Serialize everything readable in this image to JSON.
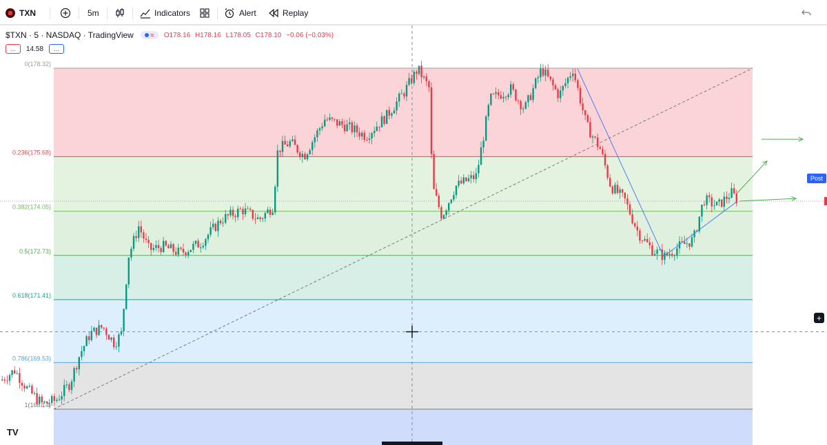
{
  "toolbar": {
    "symbol": "TXN",
    "interval": "5m",
    "indicators_label": "Indicators",
    "alert_label": "Alert",
    "replay_label": "Replay",
    "icons": [
      "add-symbol-icon",
      "bar-style-icon",
      "indicators-icon",
      "layouts-icon",
      "alert-icon",
      "replay-icon",
      "undo-icon"
    ]
  },
  "legend": {
    "title": "$TXN · 5 · NASDAQ · TradingView",
    "open": "O178.16",
    "high": "H178.16",
    "low": "L178.05",
    "close": "C178.10",
    "change": "−0.06 (−0.03%)",
    "indicator_value": "14.58",
    "btn_label": "..."
  },
  "post_label": "Post",
  "watermark": "TV",
  "colors": {
    "up": "#089981",
    "down": "#f23645",
    "trendline": "#4a7ff0",
    "arrow": "#4caf50"
  },
  "chart_data": {
    "type": "candlestick",
    "symbol": "$TXN",
    "interval": "5",
    "exchange": "NASDAQ",
    "ylim": [
      168.4,
      178.9
    ],
    "fib_levels": [
      {
        "ratio": "0",
        "price": 178.32,
        "label": "0(178.32)"
      },
      {
        "ratio": "0.236",
        "price": 175.68,
        "label": "0.236(175.68)"
      },
      {
        "ratio": "0.382",
        "price": 174.05,
        "label": "0.382(174.05)"
      },
      {
        "ratio": "0.5",
        "price": 172.73,
        "label": "0.5(172.73)"
      },
      {
        "ratio": "0.618",
        "price": 171.41,
        "label": "0.618(171.41)"
      },
      {
        "ratio": "0.786",
        "price": 169.53,
        "label": "0.786(169.53)"
      },
      {
        "ratio": "1",
        "price": 168.14,
        "label": "1(168.14)"
      }
    ],
    "fib_zones": [
      {
        "from": 178.32,
        "to": 175.68,
        "color": "#fbd4d8"
      },
      {
        "from": 175.68,
        "to": 174.05,
        "color": "#e4f3e0"
      },
      {
        "from": 174.05,
        "to": 172.73,
        "color": "#dff0df"
      },
      {
        "from": 172.73,
        "to": 171.41,
        "color": "#d7efe7"
      },
      {
        "from": 171.41,
        "to": 169.53,
        "color": "#ddeefc"
      },
      {
        "from": 169.53,
        "to": 168.14,
        "color": "#e4e4e4"
      },
      {
        "from": 168.14,
        "to": 166.0,
        "color": "#cfdcfb"
      }
    ],
    "fib_line_colors": [
      "#9c9c9c",
      "#e0484a",
      "#6fbf5b",
      "#4caf50",
      "#18a58a",
      "#52a6d6",
      "#7a7a7a"
    ],
    "price_path": [
      {
        "x": 0,
        "p": 169.0
      },
      {
        "x": 20,
        "p": 169.3
      },
      {
        "x": 40,
        "p": 168.7
      },
      {
        "x": 60,
        "p": 168.3
      },
      {
        "x": 80,
        "p": 168.4
      },
      {
        "x": 100,
        "p": 168.9
      },
      {
        "x": 115,
        "p": 169.8
      },
      {
        "x": 130,
        "p": 170.4
      },
      {
        "x": 148,
        "p": 170.6
      },
      {
        "x": 165,
        "p": 170.1
      },
      {
        "x": 175,
        "p": 170.4
      },
      {
        "x": 185,
        "p": 172.7
      },
      {
        "x": 200,
        "p": 173.6
      },
      {
        "x": 215,
        "p": 172.9
      },
      {
        "x": 235,
        "p": 173.0
      },
      {
        "x": 260,
        "p": 172.8
      },
      {
        "x": 290,
        "p": 173.1
      },
      {
        "x": 320,
        "p": 173.8
      },
      {
        "x": 350,
        "p": 174.1
      },
      {
        "x": 375,
        "p": 173.8
      },
      {
        "x": 395,
        "p": 174.2
      },
      {
        "x": 402,
        "p": 175.9
      },
      {
        "x": 420,
        "p": 176.1
      },
      {
        "x": 440,
        "p": 175.7
      },
      {
        "x": 470,
        "p": 176.8
      },
      {
        "x": 500,
        "p": 176.6
      },
      {
        "x": 530,
        "p": 176.3
      },
      {
        "x": 560,
        "p": 176.9
      },
      {
        "x": 585,
        "p": 177.6
      },
      {
        "x": 605,
        "p": 178.3
      },
      {
        "x": 622,
        "p": 177.7
      },
      {
        "x": 626,
        "p": 174.8
      },
      {
        "x": 640,
        "p": 173.9
      },
      {
        "x": 660,
        "p": 174.8
      },
      {
        "x": 690,
        "p": 175.1
      },
      {
        "x": 710,
        "p": 177.4
      },
      {
        "x": 740,
        "p": 177.7
      },
      {
        "x": 760,
        "p": 177.1
      },
      {
        "x": 785,
        "p": 178.3
      },
      {
        "x": 810,
        "p": 177.5
      },
      {
        "x": 830,
        "p": 178.3
      },
      {
        "x": 850,
        "p": 176.6
      },
      {
        "x": 870,
        "p": 175.9
      },
      {
        "x": 885,
        "p": 174.8
      },
      {
        "x": 905,
        "p": 174.4
      },
      {
        "x": 925,
        "p": 173.4
      },
      {
        "x": 945,
        "p": 172.9
      },
      {
        "x": 963,
        "p": 172.7
      },
      {
        "x": 985,
        "p": 173.0
      },
      {
        "x": 1005,
        "p": 173.2
      },
      {
        "x": 1020,
        "p": 174.4
      },
      {
        "x": 1040,
        "p": 174.2
      },
      {
        "x": 1060,
        "p": 174.6
      },
      {
        "x": 1070,
        "p": 174.35
      }
    ],
    "last_price": 174.35,
    "trendlines": [
      {
        "x1": 78,
        "p1": 168.14,
        "x2": 1092,
        "p2": 178.32,
        "style": "dashed"
      },
      {
        "x1": 838,
        "p1": 178.3,
        "x2": 963,
        "p2": 172.7,
        "style": "solid"
      },
      {
        "x1": 963,
        "p1": 172.7,
        "x2": 1070,
        "p2": 174.35,
        "style": "solid"
      }
    ],
    "arrows": [
      {
        "x1": 1105,
        "p1": 176.2,
        "x2": 1165,
        "p2": 176.2
      },
      {
        "x1": 1070,
        "p1": 174.6,
        "x2": 1113,
        "p2": 175.55
      },
      {
        "x1": 1073,
        "p1": 174.35,
        "x2": 1155,
        "p2": 174.43
      }
    ],
    "crosshair": {
      "x": 598,
      "p": 170.45
    }
  }
}
